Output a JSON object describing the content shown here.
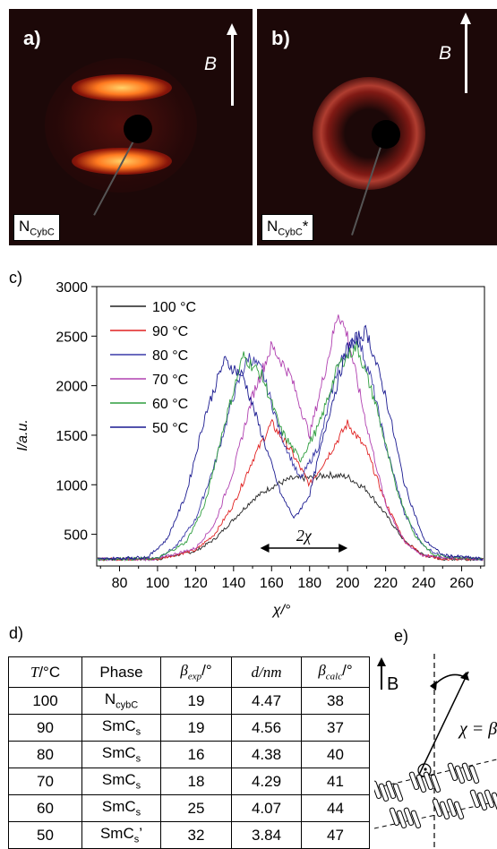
{
  "panels": {
    "a": {
      "letter": "a)",
      "field": "B",
      "phase_main": "N",
      "phase_sub": "CybC",
      "phase_suffix": ""
    },
    "b": {
      "letter": "b)",
      "field": "B",
      "phase_main": "N",
      "phase_sub": "CybC",
      "phase_suffix": "*"
    }
  },
  "panel_tags": {
    "c": "c)",
    "d": "d)",
    "e": "e)"
  },
  "chart_data": {
    "type": "line",
    "ylabel": "I/a.u.",
    "xlabel": "χ/°",
    "xlim": [
      68,
      272
    ],
    "ylim": [
      180,
      3000
    ],
    "x_ticks": [
      80,
      100,
      120,
      140,
      160,
      180,
      200,
      220,
      240,
      260
    ],
    "y_ticks": [
      500,
      1000,
      1500,
      2000,
      2500,
      3000
    ],
    "annotation": "2χ",
    "annotation_span": [
      154,
      200
    ],
    "legend": "top-left",
    "series": [
      {
        "name": "100 °C",
        "color": "#222222",
        "x": [
          70,
          100,
          120,
          130,
          140,
          150,
          160,
          170,
          180,
          190,
          200,
          210,
          220,
          230,
          240,
          250,
          272
        ],
        "y": [
          250,
          250,
          330,
          450,
          650,
          850,
          980,
          1060,
          1070,
          1100,
          1080,
          950,
          700,
          430,
          290,
          250,
          250
        ]
      },
      {
        "name": "90 °C",
        "color": "#e02020",
        "x": [
          70,
          100,
          120,
          130,
          140,
          150,
          160,
          170,
          180,
          190,
          200,
          210,
          220,
          230,
          240,
          250,
          272
        ],
        "y": [
          250,
          250,
          340,
          500,
          800,
          1250,
          1620,
          1350,
          1000,
          1300,
          1620,
          1350,
          820,
          430,
          290,
          250,
          250
        ]
      },
      {
        "name": "80 °C",
        "color": "#3a3aa8",
        "x": [
          70,
          100,
          110,
          120,
          130,
          140,
          148,
          155,
          165,
          175,
          185,
          195,
          205,
          212,
          220,
          230,
          240,
          250,
          272
        ],
        "y": [
          250,
          260,
          380,
          650,
          1200,
          1900,
          2300,
          2150,
          1500,
          1050,
          1400,
          2200,
          2500,
          2100,
          1400,
          700,
          380,
          270,
          250
        ]
      },
      {
        "name": "70 °C",
        "color": "#b040b0",
        "x": [
          70,
          100,
          120,
          130,
          140,
          150,
          160,
          170,
          180,
          190,
          195,
          200,
          210,
          220,
          230,
          240,
          272
        ],
        "y": [
          250,
          250,
          360,
          600,
          1150,
          1900,
          2400,
          2100,
          1500,
          2300,
          2750,
          2500,
          1600,
          800,
          420,
          280,
          250
        ]
      },
      {
        "name": "60 °C",
        "color": "#2e9e3e",
        "x": [
          70,
          100,
          115,
          125,
          135,
          145,
          155,
          165,
          175,
          185,
          195,
          205,
          215,
          225,
          235,
          245,
          272
        ],
        "y": [
          250,
          255,
          420,
          800,
          1600,
          2300,
          2100,
          1550,
          1250,
          1600,
          2200,
          2400,
          1800,
          1000,
          500,
          290,
          250
        ]
      },
      {
        "name": "50 °C",
        "color": "#1a1a90",
        "x": [
          70,
          95,
          105,
          115,
          125,
          135,
          145,
          155,
          165,
          172,
          180,
          190,
          200,
          210,
          220,
          230,
          240,
          250,
          272
        ],
        "y": [
          250,
          270,
          450,
          900,
          1700,
          2250,
          2100,
          1500,
          900,
          660,
          900,
          1700,
          2400,
          2550,
          1900,
          1000,
          450,
          290,
          250
        ]
      }
    ]
  },
  "table": {
    "headers": {
      "t_main": "T",
      "t_unit": "/°C",
      "phase": "Phase",
      "bexp_main": "β",
      "bexp_sub": "exp",
      "bexp_unit": "/°",
      "d": "d/nm",
      "bcalc_main": "β",
      "bcalc_sub": "calc",
      "bcalc_unit": "/°"
    },
    "rows": [
      {
        "t": "100",
        "phase_main": "N",
        "phase_sub": "cybC",
        "phase_suffix": "",
        "bexp": "19",
        "d": "4.47",
        "bcalc": "38"
      },
      {
        "t": "90",
        "phase_main": "SmC",
        "phase_sub": "s",
        "phase_suffix": "",
        "bexp": "19",
        "d": "4.56",
        "bcalc": "37"
      },
      {
        "t": "80",
        "phase_main": "SmC",
        "phase_sub": "s",
        "phase_suffix": "",
        "bexp": "16",
        "d": "4.38",
        "bcalc": "40"
      },
      {
        "t": "70",
        "phase_main": "SmC",
        "phase_sub": "s",
        "phase_suffix": "",
        "bexp": "18",
        "d": "4.29",
        "bcalc": "41"
      },
      {
        "t": "60",
        "phase_main": "SmC",
        "phase_sub": "s",
        "phase_suffix": "",
        "bexp": "25",
        "d": "4.07",
        "bcalc": "44"
      },
      {
        "t": "50",
        "phase_main": "SmC",
        "phase_sub": "s",
        "phase_suffix": "’",
        "bexp": "32",
        "d": "3.84",
        "bcalc": "47"
      }
    ]
  },
  "diagram_e": {
    "field": "B",
    "equation": "χ = β"
  }
}
